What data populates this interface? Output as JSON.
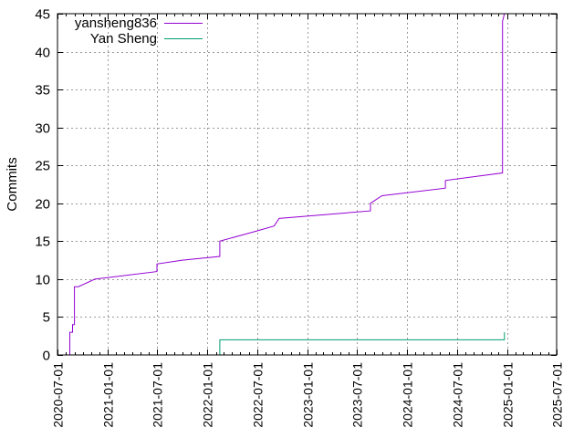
{
  "chart_data": {
    "type": "line",
    "title": "",
    "xlabel": "",
    "ylabel": "Commits",
    "ylim": [
      0,
      45
    ],
    "xlim": [
      "2020-07-01",
      "2025-07-01"
    ],
    "yticks": [
      0,
      5,
      10,
      15,
      20,
      25,
      30,
      35,
      40,
      45
    ],
    "xticks": [
      "2020-07-01",
      "2021-01-01",
      "2021-07-01",
      "2022-01-01",
      "2022-07-01",
      "2023-01-01",
      "2023-07-01",
      "2024-01-01",
      "2024-07-01",
      "2025-01-01",
      "2025-07-01"
    ],
    "grid": true,
    "legend_position": "top-left",
    "series": [
      {
        "name": "yansheng836",
        "color": "#9400d3",
        "points": [
          [
            "2020-08-15",
            0
          ],
          [
            "2020-08-15",
            3
          ],
          [
            "2020-08-25",
            3
          ],
          [
            "2020-08-25",
            4
          ],
          [
            "2020-09-01",
            4
          ],
          [
            "2020-09-01",
            9
          ],
          [
            "2020-09-15",
            9
          ],
          [
            "2020-11-15",
            10
          ],
          [
            "2021-06-30",
            11
          ],
          [
            "2021-06-30",
            12
          ],
          [
            "2021-10-01",
            12.5
          ],
          [
            "2022-02-15",
            13
          ],
          [
            "2022-02-15",
            15
          ],
          [
            "2022-07-15",
            16.5
          ],
          [
            "2022-09-01",
            17
          ],
          [
            "2022-09-20",
            18
          ],
          [
            "2023-08-20",
            19
          ],
          [
            "2023-08-20",
            20
          ],
          [
            "2023-10-01",
            21
          ],
          [
            "2024-05-20",
            22
          ],
          [
            "2024-05-20",
            23
          ],
          [
            "2024-12-15",
            24
          ],
          [
            "2024-12-15",
            44
          ],
          [
            "2024-12-22",
            45
          ]
        ]
      },
      {
        "name": "Yan Sheng",
        "color": "#009e73",
        "points": [
          [
            "2022-02-15",
            0
          ],
          [
            "2022-02-15",
            2
          ],
          [
            "2024-12-22",
            2
          ],
          [
            "2024-12-22",
            3
          ]
        ]
      }
    ]
  }
}
